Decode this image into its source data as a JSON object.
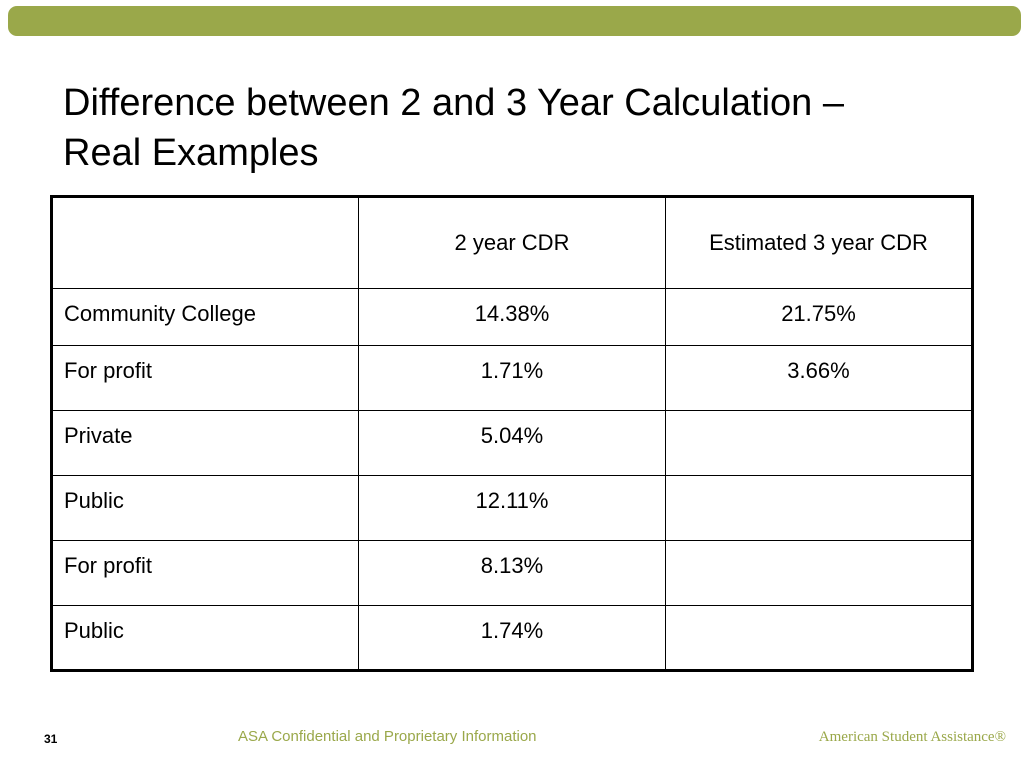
{
  "slide": {
    "title_line1": "Difference between 2 and 3 Year Calculation –",
    "title_line2": "Real Examples",
    "number": "31",
    "accent_color": "#9aa84a"
  },
  "table": {
    "headers": [
      "",
      "2 year CDR",
      "Estimated 3 year CDR"
    ],
    "rows": [
      [
        "Community College",
        "14.38%",
        "21.75%"
      ],
      [
        "For profit",
        "1.71%",
        "3.66%"
      ],
      [
        "Private",
        "5.04%",
        ""
      ],
      [
        "Public",
        "12.11%",
        ""
      ],
      [
        "For profit",
        "8.13%",
        ""
      ],
      [
        "Public",
        "1.74%",
        ""
      ]
    ]
  },
  "footer": {
    "confidential": "ASA Confidential and Proprietary Information",
    "brand": "American Student Assistance®"
  }
}
